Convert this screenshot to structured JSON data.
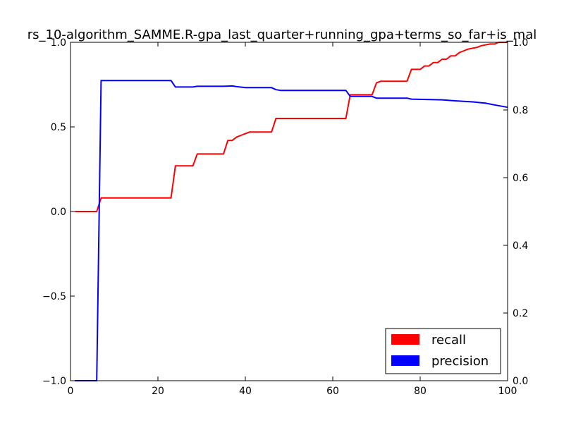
{
  "chart_data": {
    "type": "line",
    "title": "rs_10-algorithm_SAMME.R-gpa_last_quarter+running_gpa+terms_so_far+is_mal",
    "xlabel": "",
    "ylabel": "",
    "xlim": [
      0,
      100
    ],
    "ylim_left": [
      -1.0,
      1.0
    ],
    "ylim_right": [
      0.0,
      1.0
    ],
    "x_ticks": [
      "0",
      "20",
      "40",
      "60",
      "80",
      "100"
    ],
    "y_left_ticks": [
      "−1.0",
      "−0.5",
      "0.0",
      "0.5",
      "1.0"
    ],
    "y_right_ticks": [
      "0.0",
      "0.2",
      "0.4",
      "0.6",
      "0.8",
      "1.0"
    ],
    "grid": false,
    "legend_position": "lower-right",
    "series": [
      {
        "name": "recall",
        "axis": "left",
        "color": "#ff0000",
        "points": [
          [
            1,
            0.0
          ],
          [
            6,
            0.0
          ],
          [
            7,
            0.08
          ],
          [
            23,
            0.08
          ],
          [
            24,
            0.27
          ],
          [
            28,
            0.27
          ],
          [
            29,
            0.34
          ],
          [
            35,
            0.34
          ],
          [
            36,
            0.42
          ],
          [
            37,
            0.42
          ],
          [
            38,
            0.44
          ],
          [
            39,
            0.45
          ],
          [
            40,
            0.46
          ],
          [
            41,
            0.47
          ],
          [
            46,
            0.47
          ],
          [
            47,
            0.55
          ],
          [
            63,
            0.55
          ],
          [
            64,
            0.69
          ],
          [
            69,
            0.69
          ],
          [
            70,
            0.76
          ],
          [
            71,
            0.77
          ],
          [
            77,
            0.77
          ],
          [
            78,
            0.84
          ],
          [
            80,
            0.84
          ],
          [
            81,
            0.86
          ],
          [
            82,
            0.86
          ],
          [
            83,
            0.88
          ],
          [
            84,
            0.88
          ],
          [
            85,
            0.9
          ],
          [
            86,
            0.9
          ],
          [
            87,
            0.92
          ],
          [
            88,
            0.92
          ],
          [
            89,
            0.94
          ],
          [
            90,
            0.95
          ],
          [
            91,
            0.96
          ],
          [
            93,
            0.97
          ],
          [
            94,
            0.98
          ],
          [
            96,
            0.99
          ],
          [
            97,
            0.99
          ],
          [
            98,
            1.0
          ],
          [
            100,
            1.0
          ]
        ]
      },
      {
        "name": "precision",
        "axis": "right",
        "color": "#0000ff",
        "points": [
          [
            1,
            0.0
          ],
          [
            6,
            0.0
          ],
          [
            7,
            0.887
          ],
          [
            23,
            0.887
          ],
          [
            24,
            0.868
          ],
          [
            28,
            0.868
          ],
          [
            29,
            0.87
          ],
          [
            35,
            0.87
          ],
          [
            37,
            0.871
          ],
          [
            38,
            0.869
          ],
          [
            40,
            0.866
          ],
          [
            46,
            0.866
          ],
          [
            47,
            0.86
          ],
          [
            48,
            0.858
          ],
          [
            63,
            0.858
          ],
          [
            64,
            0.84
          ],
          [
            69,
            0.84
          ],
          [
            70,
            0.835
          ],
          [
            77,
            0.835
          ],
          [
            78,
            0.832
          ],
          [
            85,
            0.83
          ],
          [
            88,
            0.827
          ],
          [
            92,
            0.824
          ],
          [
            95,
            0.82
          ],
          [
            97,
            0.815
          ],
          [
            100,
            0.808
          ]
        ]
      }
    ]
  }
}
